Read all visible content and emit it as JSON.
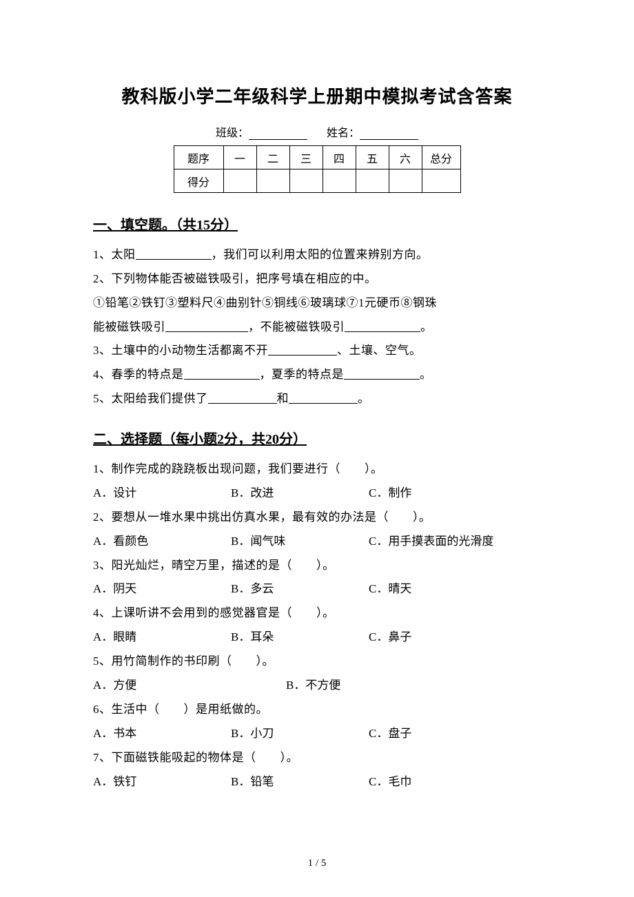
{
  "title": "教科版小学二年级科学上册期中模拟考试含答案",
  "info": {
    "class_label": "班级：",
    "name_label": "姓名："
  },
  "score_table": {
    "row_labels": [
      "题序",
      "得分"
    ],
    "cols": [
      "一",
      "二",
      "三",
      "四",
      "五",
      "六"
    ],
    "total_label": "总分"
  },
  "section1": {
    "header": "一、填空题。（共15分）",
    "q1_a": "1、太阳",
    "q1_b": "，我们可以利用太阳的位置来辨别方向。",
    "q2_a": "2、下列物体能否被磁铁吸引，把序号填在相应的中。",
    "q2_b": "①铅笔②铁钉③塑料尺④曲别针⑤铜线⑥玻璃球⑦1元硬币⑧钢珠",
    "q2_c": "能被磁铁吸引",
    "q2_d": "，不能被磁铁吸引",
    "q2_e": "。",
    "q3_a": "3、土壤中的小动物生活都离不开",
    "q3_b": "、土壤、空气。",
    "q4_a": "4、春季的特点是",
    "q4_b": "，夏季的特点是",
    "q4_c": "。",
    "q5_a": "5、太阳给我们提供了",
    "q5_b": "和",
    "q5_c": "。"
  },
  "section2": {
    "header": "二、选择题（每小题2分，共20分）",
    "questions": [
      {
        "stem": "1、制作完成的跷跷板出现问题，我们要进行（　　）。",
        "opts": [
          "A．设计",
          "B．改进",
          "C．制作"
        ],
        "layout": [
          0,
          200,
          400
        ]
      },
      {
        "stem": "2、要想从一堆水果中挑出仿真水果，最有效的办法是（　　）。",
        "opts": [
          "A．看颜色",
          "B．闻气味",
          "C．用手摸表面的光滑度"
        ],
        "layout": [
          0,
          200,
          400
        ]
      },
      {
        "stem": "3、阳光灿烂，晴空万里，描述的是（　　）。",
        "opts": [
          "A．阴天",
          "B．多云",
          "C．晴天"
        ],
        "layout": [
          0,
          200,
          400
        ]
      },
      {
        "stem": "4、上课听讲不会用到的感觉器官是（　　）。",
        "opts": [
          "A．眼睛",
          "B．耳朵",
          "C．鼻子"
        ],
        "layout": [
          0,
          200,
          400
        ]
      },
      {
        "stem": "5、用竹简制作的书印刷（　　）。",
        "opts": [
          "A．方便",
          "B．不方便"
        ],
        "layout": [
          0,
          280
        ]
      },
      {
        "stem": "6、生活中（　　）是用纸做的。",
        "opts": [
          "A．书本",
          "B．小刀",
          "C．盘子"
        ],
        "layout": [
          0,
          200,
          400
        ]
      },
      {
        "stem": "7、下面磁铁能吸起的物体是（　　）。",
        "opts": [
          "A．铁钉",
          "B．铅笔",
          "C．毛巾"
        ],
        "layout": [
          0,
          200,
          400
        ]
      }
    ]
  },
  "page_number": "1 / 5",
  "blank_widths": {
    "w100": 100,
    "w110": 110,
    "w90": 90
  }
}
